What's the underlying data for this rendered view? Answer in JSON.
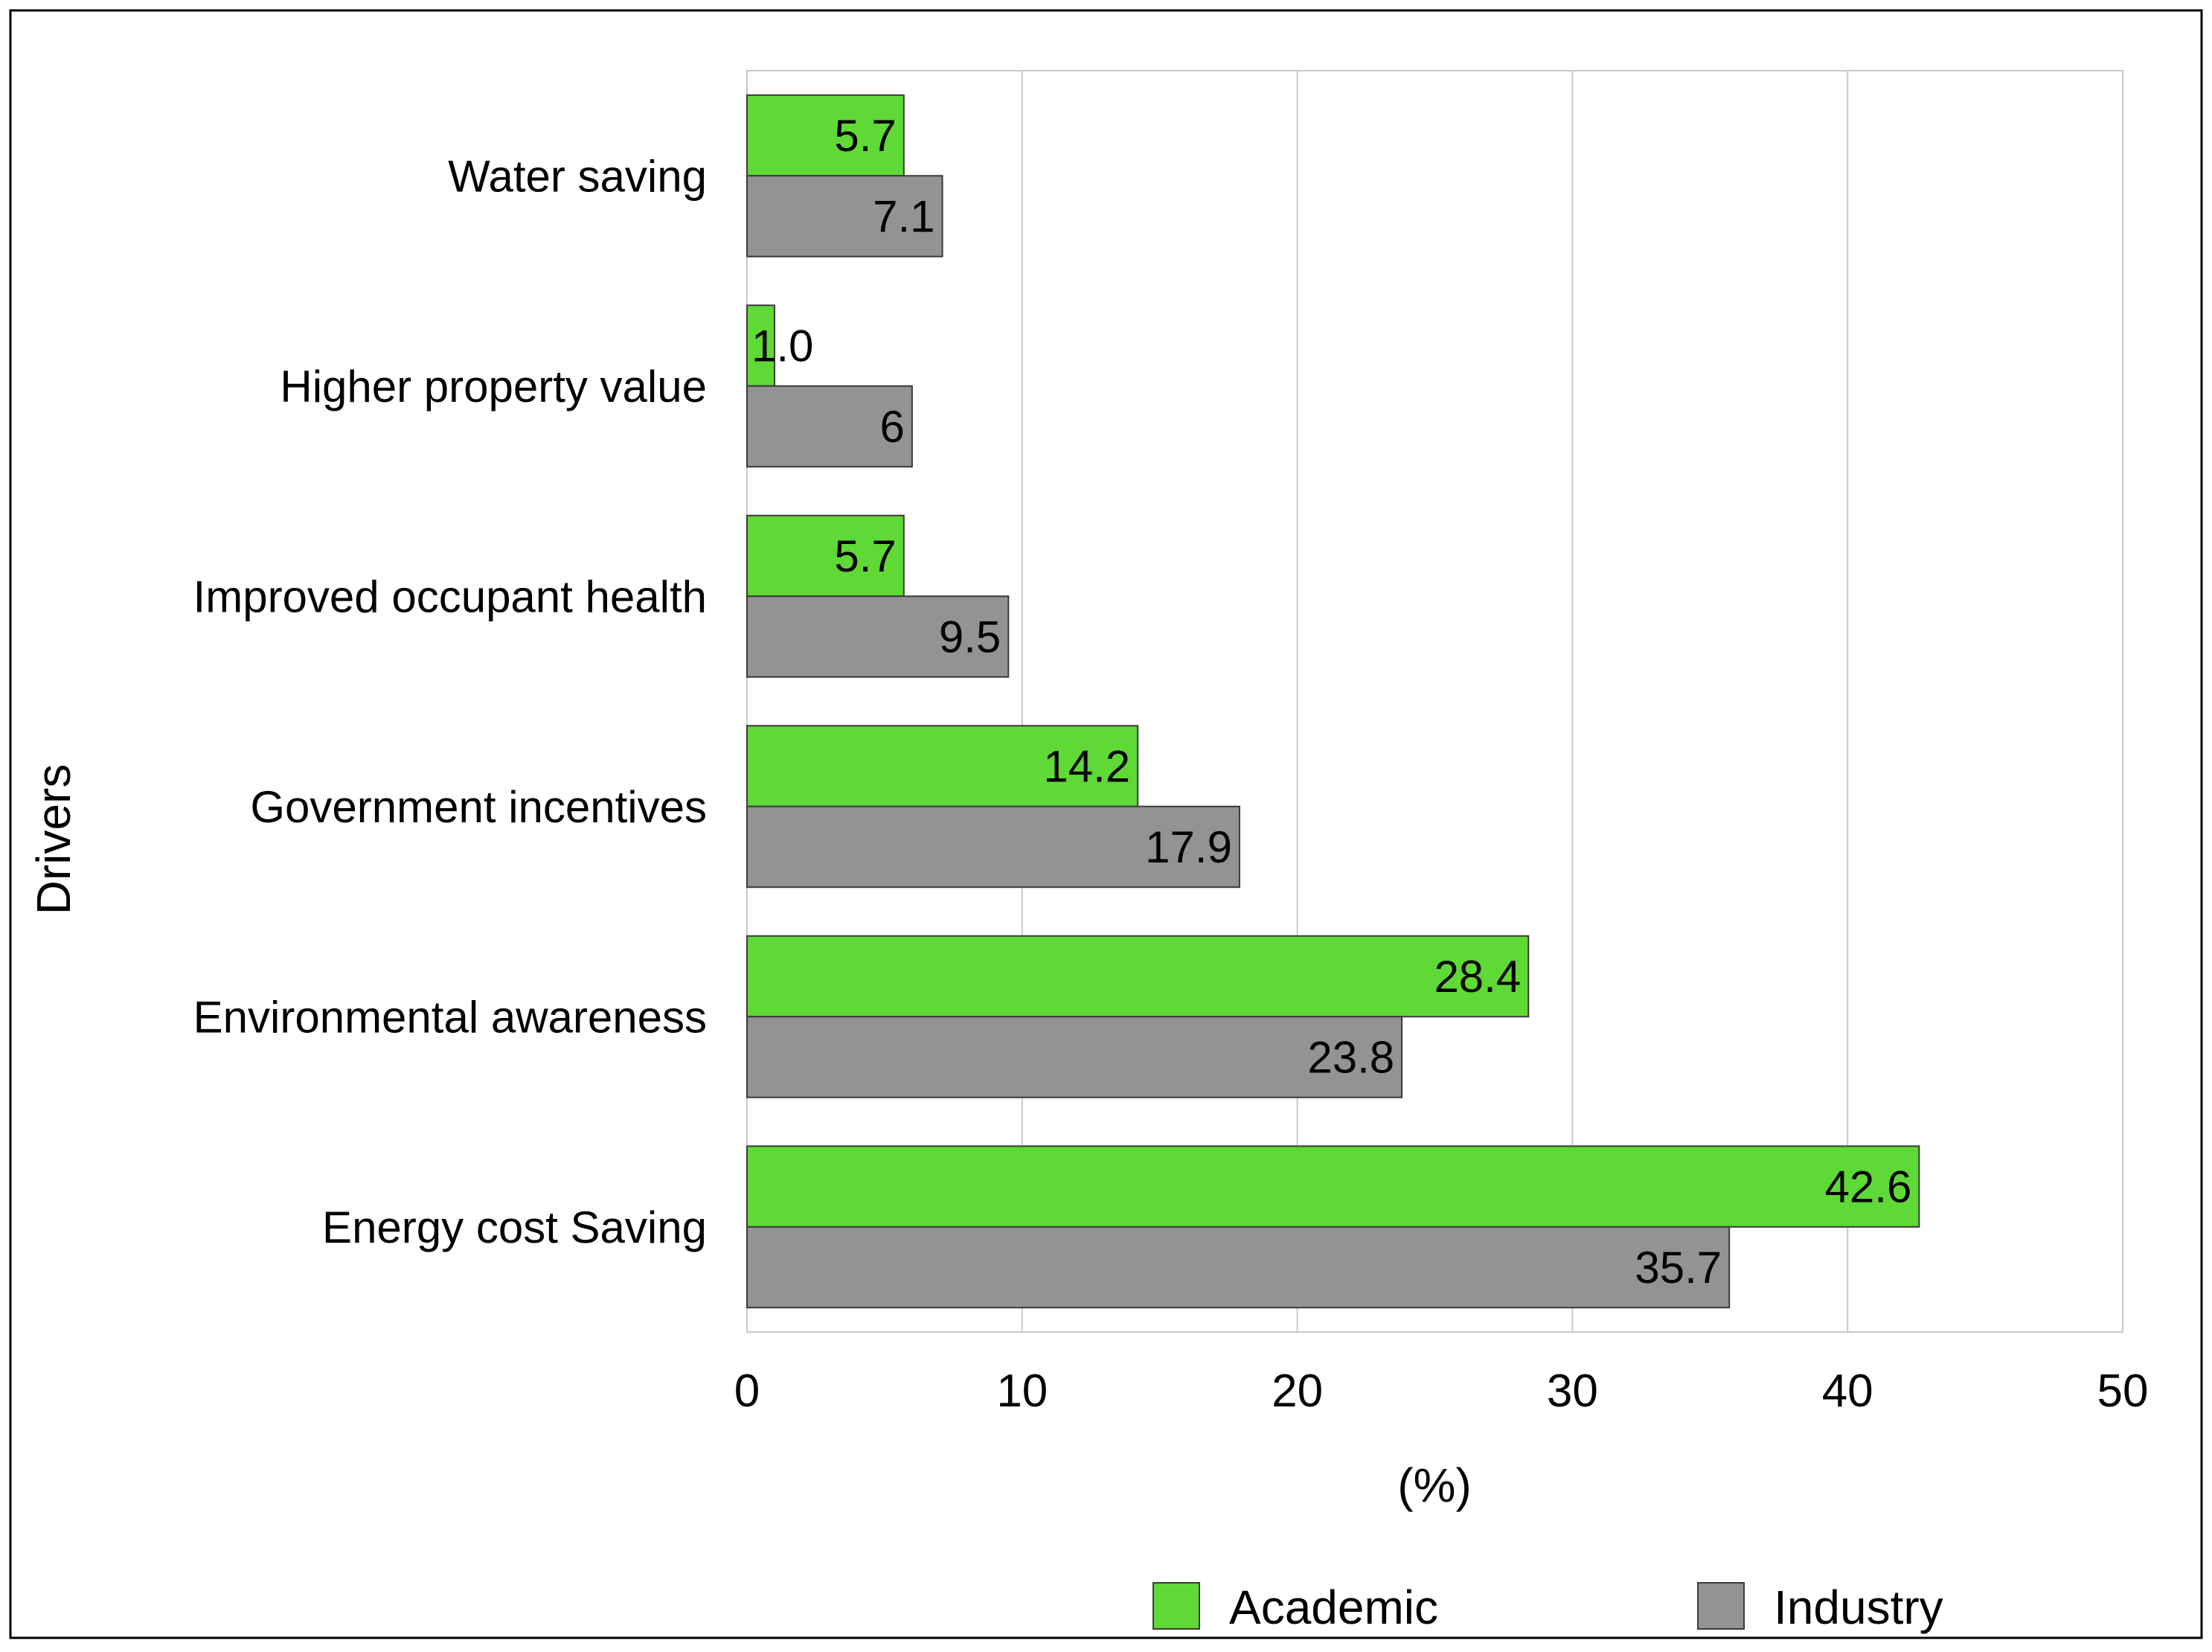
{
  "chart_data": {
    "type": "bar",
    "orientation": "horizontal",
    "categories": [
      "Water saving",
      "Higher property value",
      "Improved occupant health",
      "Government incentives",
      "Environmental awareness",
      "Energy cost Saving"
    ],
    "series": [
      {
        "name": "Academic",
        "color": "#5fd935",
        "values": [
          5.7,
          1.0,
          5.7,
          14.2,
          28.4,
          42.6
        ],
        "labels": [
          "5.7",
          "1.0",
          "5.7",
          "14.2",
          "28.4",
          "42.6"
        ]
      },
      {
        "name": "Industry",
        "color": "#939393",
        "values": [
          7.1,
          6,
          9.5,
          17.9,
          23.8,
          35.7
        ],
        "labels": [
          "7.1",
          "6",
          "9.5",
          "17.9",
          "23.8",
          "35.7"
        ]
      }
    ],
    "xlabel": "(%)",
    "ylabel": "Drivers",
    "xlim": [
      0,
      50
    ],
    "xticks": [
      0,
      10,
      20,
      30,
      40,
      50
    ],
    "xtick_labels": [
      "0",
      "10",
      "20",
      "30",
      "40",
      "50"
    ],
    "grid": true,
    "legend_position": "bottom"
  }
}
